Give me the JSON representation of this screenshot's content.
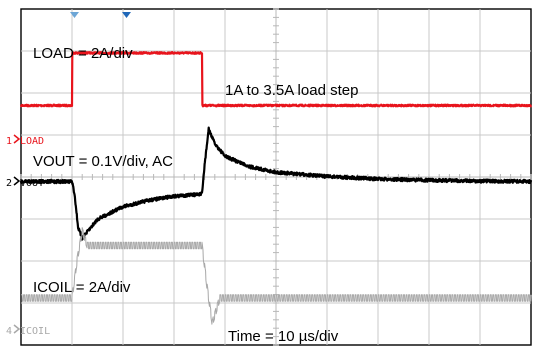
{
  "chart_data": {
    "type": "line",
    "x_divisions": 10,
    "y_divisions": 8,
    "grid": true,
    "time_per_div": "10 µs",
    "channels": [
      {
        "id": "1",
        "tag": "LOAD",
        "annotation": "LOAD = 2A/div",
        "color": "#e8141c",
        "scale_per_div": 2,
        "unit": "A",
        "x": [
          0,
          1.0,
          1.0,
          3.55,
          3.55,
          10
        ],
        "y": [
          1,
          1,
          3.5,
          3.5,
          1,
          1
        ]
      },
      {
        "id": "2",
        "tag": "VOUT",
        "annotation": "VOUT = 0.1V/div, AC",
        "color": "#000000",
        "scale_per_div": 0.1,
        "unit": "V",
        "x": [
          0,
          1.0,
          1.05,
          1.12,
          1.2,
          1.3,
          1.5,
          2.0,
          2.5,
          3.0,
          3.55,
          3.6,
          3.68,
          3.8,
          4.0,
          4.5,
          5.0,
          6.0,
          7.0,
          8.0,
          9.0,
          10
        ],
        "y": [
          0,
          0,
          -0.03,
          -0.11,
          -0.135,
          -0.12,
          -0.09,
          -0.06,
          -0.045,
          -0.035,
          -0.03,
          0.04,
          0.125,
          0.09,
          0.06,
          0.035,
          0.022,
          0.012,
          0.006,
          0.003,
          0.001,
          0
        ]
      },
      {
        "id": "4",
        "tag": "ICOIL",
        "annotation": "ICOIL = 2A/div",
        "color": "#a8a8a8",
        "scale_per_div": 2,
        "unit": "A",
        "x": [
          0,
          1.0,
          1.1,
          1.2,
          1.3,
          3.55,
          3.65,
          3.75,
          3.9,
          10
        ],
        "y": [
          1,
          1,
          2.8,
          4.2,
          3.5,
          3.5,
          1.5,
          -0.2,
          1,
          1
        ]
      }
    ],
    "annotations": [
      "1A to 3.5A load step",
      "Time = 10 µs/div"
    ]
  }
}
